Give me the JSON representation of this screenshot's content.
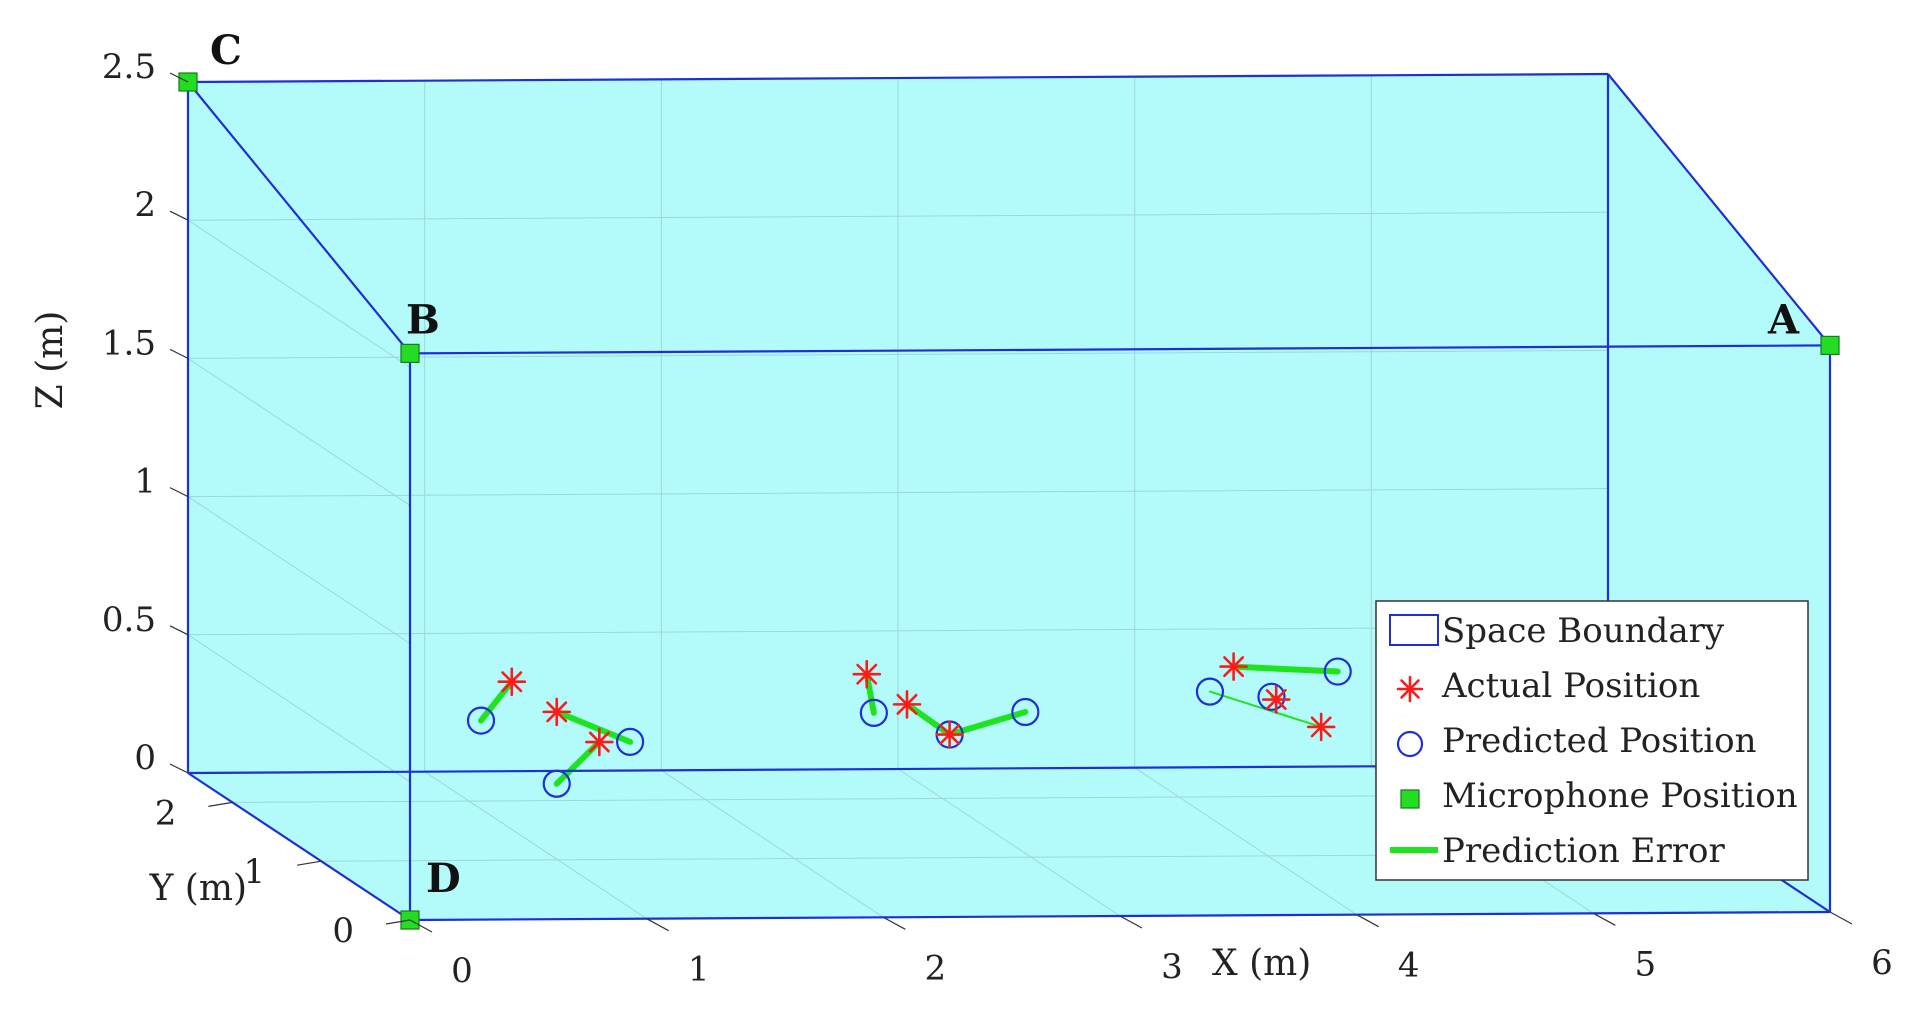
{
  "chart_data": {
    "type": "scatter",
    "projection": "3d",
    "xlabel": "X (m)",
    "ylabel": "Y (m)",
    "zlabel": "Z (m)",
    "xlim": [
      0,
      6
    ],
    "ylim": [
      0,
      2.5
    ],
    "zlim": [
      0,
      2.5
    ],
    "xticks": [
      "0",
      "1",
      "2",
      "3",
      "4",
      "5",
      "6"
    ],
    "yticks": [
      "0",
      "1",
      "2"
    ],
    "zticks": [
      "0",
      "0.5",
      "1",
      "1.5",
      "2",
      "2.5"
    ],
    "grid": true,
    "legend_position": "bottom-right",
    "legend": [
      {
        "key": "boundary",
        "label": "Space Boundary"
      },
      {
        "key": "actual",
        "label": "Actual Position"
      },
      {
        "key": "predicted",
        "label": "Predicted Position"
      },
      {
        "key": "mic",
        "label": "Microphone Position"
      },
      {
        "key": "error",
        "label": "Prediction Error"
      }
    ],
    "colors": {
      "boundary": "#1f2fd6",
      "fill": "#b3fbfb",
      "actual": "#ff1a1a",
      "predicted": "#1f2fd6",
      "mic": "#22dd22",
      "error": "#1ee31e",
      "grid": "#9fd6d6"
    },
    "microphones": [
      {
        "label": "A",
        "x": 6.0,
        "y": 0.0,
        "z": 2.05
      },
      {
        "label": "B",
        "x": 0.0,
        "y": 0.0,
        "z": 2.05
      },
      {
        "label": "C",
        "x": 0.0,
        "y": 2.5,
        "z": 2.5
      },
      {
        "label": "D",
        "x": 0.0,
        "y": 0.0,
        "z": 0.0
      }
    ],
    "pairs": [
      {
        "actual": [
          0.43,
          0.0,
          0.86
        ],
        "predicted": [
          0.3,
          0.0,
          0.72
        ],
        "error_width": 6
      },
      {
        "actual": [
          0.62,
          0.0,
          0.75
        ],
        "predicted": [
          0.93,
          0.0,
          0.64
        ],
        "error_width": 6
      },
      {
        "actual": [
          0.8,
          0.0,
          0.64
        ],
        "predicted": [
          0.62,
          0.0,
          0.49
        ],
        "error_width": 6
      },
      {
        "actual": [
          1.93,
          0.0,
          0.88
        ],
        "predicted": [
          1.96,
          0.0,
          0.74
        ],
        "error_width": 6
      },
      {
        "actual": [
          2.1,
          0.0,
          0.77
        ],
        "predicted": [
          2.28,
          0.0,
          0.66
        ],
        "error_width": 6
      },
      {
        "actual": [
          2.28,
          0.0,
          0.66
        ],
        "predicted": [
          2.6,
          0.0,
          0.74
        ],
        "error_width": 6
      },
      {
        "actual": [
          3.48,
          0.0,
          0.9
        ],
        "predicted": [
          3.92,
          0.0,
          0.88
        ],
        "error_width": 6
      },
      {
        "actual": [
          3.66,
          0.0,
          0.78
        ],
        "predicted": [
          3.64,
          0.0,
          0.79
        ],
        "error_width": 2
      },
      {
        "actual": [
          3.85,
          0.0,
          0.68
        ],
        "predicted": [
          3.38,
          0.0,
          0.81
        ],
        "error_width": 2
      }
    ]
  }
}
